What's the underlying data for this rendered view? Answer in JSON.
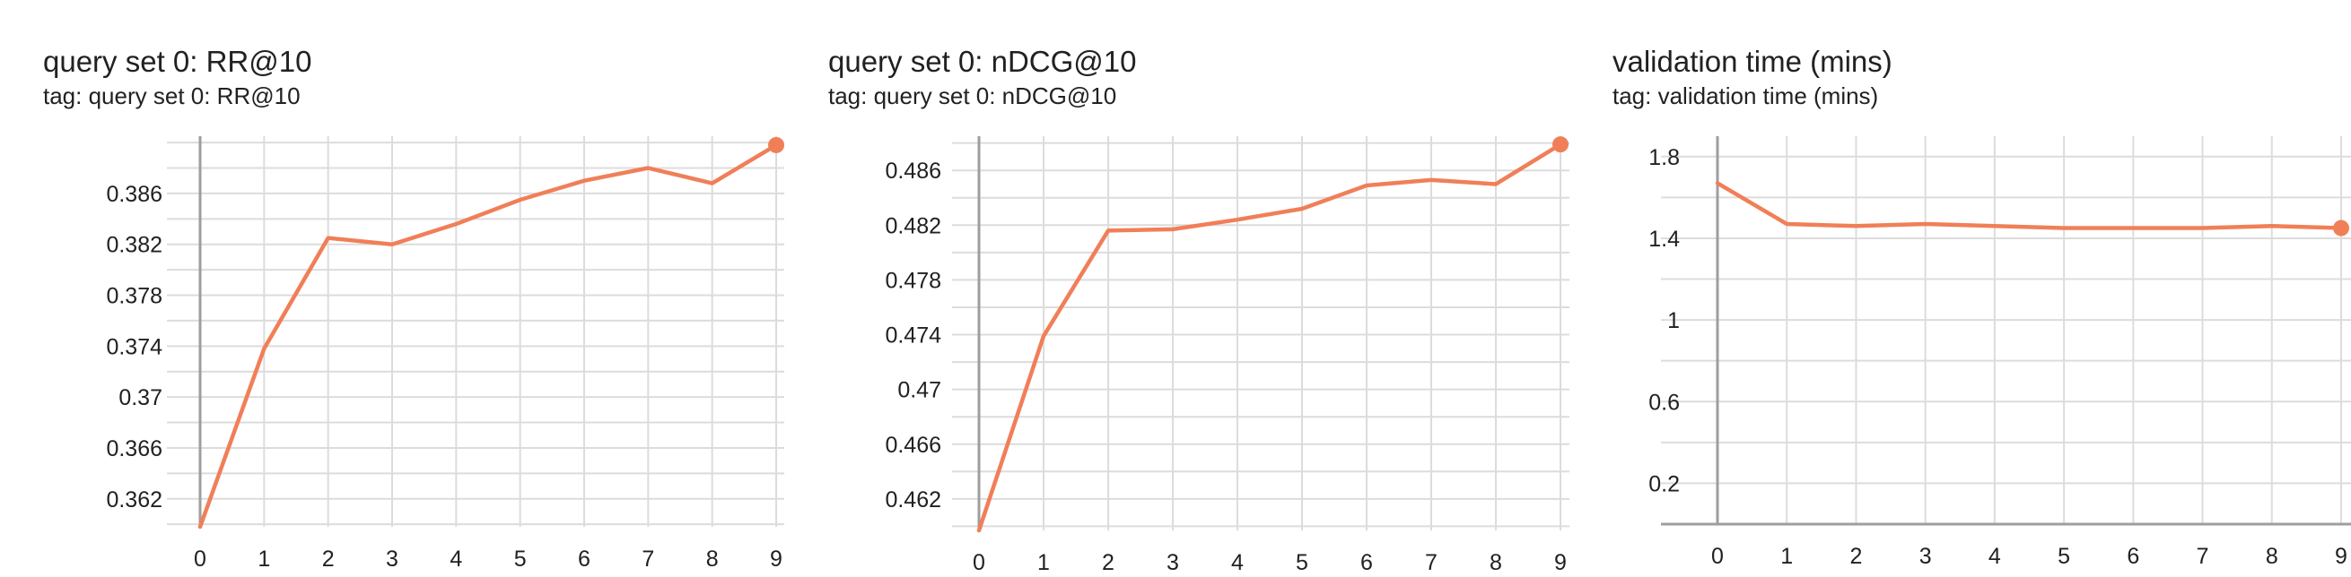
{
  "charts": [
    {
      "title": "query set 0: RR@10",
      "tag": "tag: query set 0: RR@10"
    },
    {
      "title": "query set 0: nDCG@10",
      "tag": "tag: query set 0: nDCG@10"
    },
    {
      "title": "validation time (mins)",
      "tag": "tag: validation time (mins)"
    }
  ],
  "colors": {
    "line": "#f07f58",
    "grid": "#dcdcdc",
    "axis": "#9e9e9e",
    "text": "#212121"
  },
  "chart_data": [
    {
      "type": "line",
      "title": "query set 0: RR@10",
      "subtitle": "tag: query set 0: RR@10",
      "x": [
        0,
        1,
        2,
        3,
        4,
        5,
        6,
        7,
        8,
        9
      ],
      "values": [
        0.3598,
        0.3738,
        0.3825,
        0.382,
        0.3836,
        0.3855,
        0.387,
        0.388,
        0.3868,
        0.3898
      ],
      "xticks": [
        "0",
        "1",
        "2",
        "3",
        "4",
        "5",
        "6",
        "7",
        "8",
        "9"
      ],
      "yticks": [
        0.362,
        0.366,
        0.37,
        0.374,
        0.378,
        0.382,
        0.386
      ],
      "ytick_labels": [
        "0.362",
        "0.366",
        "0.37",
        "0.374",
        "0.378",
        "0.382",
        "0.386"
      ],
      "xlim": [
        0,
        9
      ],
      "ylim": [
        0.3598,
        0.3905
      ],
      "grid": true
    },
    {
      "type": "line",
      "title": "query set 0: nDCG@10",
      "subtitle": "tag: query set 0: nDCG@10",
      "x": [
        0,
        1,
        2,
        3,
        4,
        5,
        6,
        7,
        8,
        9
      ],
      "values": [
        0.4597,
        0.4739,
        0.4816,
        0.4817,
        0.4824,
        0.4832,
        0.4849,
        0.4853,
        0.485,
        0.4879
      ],
      "xticks": [
        "0",
        "1",
        "2",
        "3",
        "4",
        "5",
        "6",
        "7",
        "8",
        "9"
      ],
      "yticks": [
        0.462,
        0.466,
        0.47,
        0.474,
        0.478,
        0.482,
        0.486
      ],
      "ytick_labels": [
        "0.462",
        "0.466",
        "0.47",
        "0.474",
        "0.478",
        "0.482",
        "0.486"
      ],
      "xlim": [
        0,
        9
      ],
      "ylim": [
        0.4597,
        0.4885
      ],
      "grid": true
    },
    {
      "type": "line",
      "title": "validation time (mins)",
      "subtitle": "tag: validation time (mins)",
      "x": [
        0,
        1,
        2,
        3,
        4,
        5,
        6,
        7,
        8,
        9
      ],
      "values": [
        1.67,
        1.47,
        1.46,
        1.47,
        1.46,
        1.45,
        1.45,
        1.45,
        1.46,
        1.45
      ],
      "xticks": [
        "0",
        "1",
        "2",
        "3",
        "4",
        "5",
        "6",
        "7",
        "8",
        "9"
      ],
      "yticks": [
        0.2,
        0.6,
        1,
        1.4,
        1.8
      ],
      "ytick_labels": [
        "0.2",
        "0.6",
        "1",
        "1.4",
        "1.8"
      ],
      "xlim": [
        0,
        9
      ],
      "ylim": [
        0.0,
        1.9
      ],
      "grid": true
    }
  ]
}
